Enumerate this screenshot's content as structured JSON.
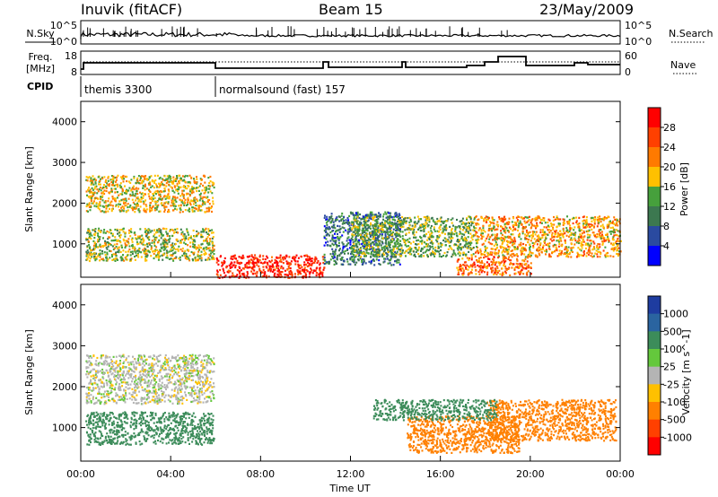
{
  "header": {
    "station": "Inuvik (fitACF)",
    "beam": "Beam 15",
    "date": "23/May/2009"
  },
  "nsky": {
    "label": "N.Sky",
    "ticks": [
      "10^5",
      "10^0"
    ],
    "right_ticks": [
      "10^5",
      "10^0"
    ],
    "right_label": "N.Search"
  },
  "freq": {
    "label_line1": "Freq.",
    "label_line2": "[MHz]",
    "ticks": [
      "18",
      "8"
    ],
    "right_ticks": [
      "60",
      "0"
    ],
    "right_label": "Nave"
  },
  "cpid": {
    "label": "CPID",
    "segments": [
      {
        "start": "00:00",
        "end": "06:00",
        "name": "themis 3300"
      },
      {
        "start": "06:00",
        "end": "24:00",
        "name": "normalsound (fast) 157"
      }
    ]
  },
  "power_panel": {
    "ylabel": "Slant Range [km]",
    "yticks": [
      "4000",
      "3000",
      "2000",
      "1000"
    ],
    "scale_label": "Power [dB]",
    "scale_ticks": [
      "28",
      "24",
      "20",
      "16",
      "12",
      "8",
      "4"
    ],
    "scale_colors": [
      "#ff0000",
      "#ff4000",
      "#ff7a00",
      "#ffc000",
      "#46a03c",
      "#3c7850",
      "#2a4aa0",
      "#0000ff"
    ]
  },
  "velocity_panel": {
    "ylabel": "Slant Range [km]",
    "yticks": [
      "4000",
      "3000",
      "2000",
      "1000"
    ],
    "scale_label": "Velocity [m s^-1]",
    "scale_ticks": [
      "1000",
      "500",
      "100",
      "25",
      "-25",
      "-100",
      "-500",
      "-1000"
    ],
    "scale_colors": [
      "#1e3ca0",
      "#2a64a0",
      "#3c8c5a",
      "#64c83c",
      "#b4b4b4",
      "#ffc000",
      "#ff8000",
      "#ff4000",
      "#ff0000"
    ]
  },
  "xaxis": {
    "label": "Time UT",
    "ticks": [
      "00:00",
      "04:00",
      "08:00",
      "12:00",
      "16:00",
      "20:00",
      "00:00"
    ]
  },
  "chart_data": {
    "type": "heatmap",
    "x_range_hours": [
      0,
      24
    ],
    "y_range_km": [
      180,
      4500
    ],
    "power_regions": [
      {
        "t0": 0.2,
        "t1": 5.9,
        "r0": 1800,
        "r1": 2700,
        "level": 18
      },
      {
        "t0": 0.2,
        "t1": 5.9,
        "r0": 600,
        "r1": 1400,
        "level": 16
      },
      {
        "t0": 6.0,
        "t1": 10.8,
        "r0": 180,
        "r1": 750,
        "level": 29
      },
      {
        "t0": 10.8,
        "t1": 14.2,
        "r0": 500,
        "r1": 1800,
        "level": 9
      },
      {
        "t0": 12.0,
        "t1": 17.5,
        "r0": 700,
        "r1": 1700,
        "level": 14
      },
      {
        "t0": 17.5,
        "t1": 24.0,
        "r0": 700,
        "r1": 1700,
        "level": 20
      },
      {
        "t0": 16.7,
        "t1": 20.0,
        "r0": 250,
        "r1": 700,
        "level": 24
      }
    ],
    "velocity_regions": [
      {
        "t0": 0.2,
        "t1": 5.9,
        "r0": 1600,
        "r1": 2800,
        "v": 0
      },
      {
        "t0": 0.2,
        "t1": 5.9,
        "r0": 600,
        "r1": 1400,
        "v": 150
      },
      {
        "t0": 14.5,
        "t1": 19.5,
        "r0": 400,
        "r1": 1300,
        "v": -300
      },
      {
        "t0": 18.0,
        "t1": 23.8,
        "r0": 700,
        "r1": 1700,
        "v": -400
      },
      {
        "t0": 13.0,
        "t1": 18.5,
        "r0": 1200,
        "r1": 1700,
        "v": 300
      }
    ]
  }
}
